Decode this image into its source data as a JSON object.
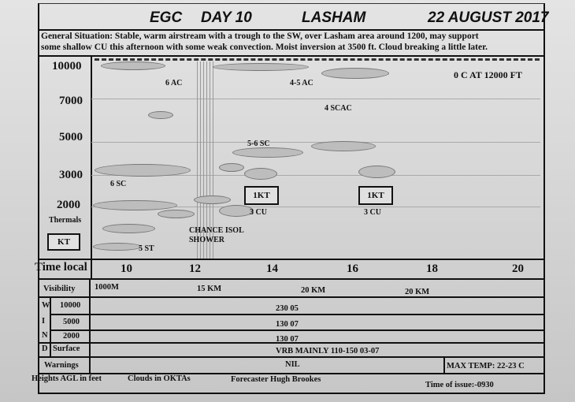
{
  "header": {
    "org": "EGC",
    "day": "DAY 10",
    "site": "LASHAM",
    "date": "22 AUGUST 2017"
  },
  "general_situation": {
    "line1": "General Situation: Stable, warm airstream with a trough to the SW, over Lasham area around 1200, may support",
    "line2": "some shallow CU this afternoon with some weak convection. Moist inversion at 3500 ft. Cloud breaking a little later."
  },
  "chart": {
    "altitudes": [
      "10000",
      "7000",
      "5000",
      "3000",
      "2000"
    ],
    "freezing_level": "0 C AT 12000 FT",
    "cloud_labels": [
      "6 AC",
      "4-5 AC",
      "4 SCAC",
      "5-6 SC",
      "6 SC",
      "3 CU",
      "3 CU",
      "5 ST"
    ],
    "thermals_label": "Thermals",
    "thermals_box": "KT",
    "thermal_arrows": [
      "1KT",
      "1KT"
    ],
    "shower": [
      "CHANCE ISOL",
      "SHOWER"
    ]
  },
  "time": {
    "label": "Time local",
    "ticks": [
      "10",
      "12",
      "14",
      "16",
      "18",
      "20"
    ]
  },
  "visibility": {
    "label": "Visibility",
    "values": [
      "1000M",
      "15 KM",
      "20 KM",
      "20 KM"
    ]
  },
  "wind": {
    "letters": [
      "W",
      "I",
      "N",
      "D"
    ],
    "rows": [
      {
        "level": "10000",
        "value": "230 05"
      },
      {
        "level": "5000",
        "value": "130 07"
      },
      {
        "level": "2000",
        "value": "130 07"
      },
      {
        "level": "Surface",
        "value": "VRB MAINLY 110-150 03-07"
      }
    ]
  },
  "warnings": {
    "label": "Warnings",
    "value": "NIL",
    "max_temp": "MAX TEMP: 22-23 C"
  },
  "footer": {
    "heights": "Heights AGL in feet",
    "clouds": "Clouds in OKTAs",
    "forecaster": "Forecaster Hugh Brookes",
    "issue": "Time of issue:-0930"
  }
}
